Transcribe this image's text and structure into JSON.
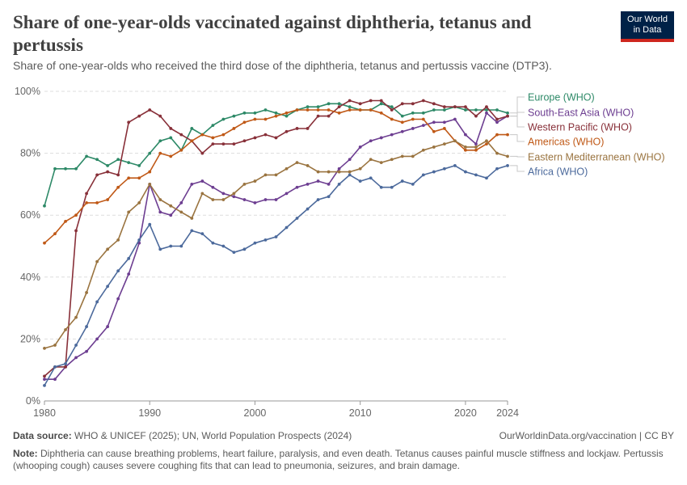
{
  "header": {
    "title": "Share of one-year-olds vaccinated against diphtheria, tetanus and pertussis",
    "subtitle": "Share of one-year-olds who received the third dose of the diphtheria, tetanus and pertussis vaccine (DTP3).",
    "logo_line1": "Our World",
    "logo_line2": "in Data"
  },
  "footer": {
    "source_label": "Data source:",
    "source_text": "WHO & UNICEF (2025); UN, World Population Prospects (2024)",
    "credit": "OurWorldinData.org/vaccination | CC BY",
    "note_label": "Note:",
    "note_text": "Diphtheria can cause breathing problems, heart failure, paralysis, and even death. Tetanus causes painful muscle stiffness and lockjaw. Pertussis (whooping cough) causes severe coughing fits that can lead to pneumonia, seizures, and brain damage."
  },
  "chart_data": {
    "type": "line",
    "x": [
      1980,
      1981,
      1982,
      1983,
      1984,
      1985,
      1986,
      1987,
      1988,
      1989,
      1990,
      1991,
      1992,
      1993,
      1994,
      1995,
      1996,
      1997,
      1998,
      1999,
      2000,
      2001,
      2002,
      2003,
      2004,
      2005,
      2006,
      2007,
      2008,
      2009,
      2010,
      2011,
      2012,
      2013,
      2014,
      2015,
      2016,
      2017,
      2018,
      2019,
      2020,
      2021,
      2022,
      2023,
      2024
    ],
    "xticks": [
      1980,
      1990,
      2000,
      2010,
      2020,
      2024
    ],
    "ylim": [
      0,
      100
    ],
    "yticks": [
      0,
      20,
      40,
      60,
      80,
      100
    ],
    "ytick_suffix": "%",
    "grid": "horizontal-dashed",
    "legend": "right, labels at line ends",
    "series": [
      {
        "name": "Europe (WHO)",
        "color": "#2d8967",
        "values": [
          63,
          75,
          75,
          75,
          79,
          78,
          76,
          78,
          77,
          76,
          80,
          84,
          85,
          81,
          88,
          86,
          89,
          91,
          92,
          93,
          93,
          94,
          93,
          92,
          94,
          95,
          95,
          96,
          96,
          95,
          94,
          94,
          96,
          95,
          92,
          93,
          93,
          94,
          94,
          95,
          94,
          94,
          94,
          94,
          93
        ]
      },
      {
        "name": "South-East Asia (WHO)",
        "color": "#6d3e91",
        "values": [
          7,
          7,
          11,
          14,
          16,
          20,
          24,
          33,
          41,
          51,
          70,
          61,
          60,
          64,
          70,
          71,
          69,
          67,
          66,
          65,
          64,
          65,
          65,
          67,
          69,
          70,
          71,
          70,
          75,
          78,
          82,
          84,
          85,
          86,
          87,
          88,
          89,
          90,
          90,
          91,
          86,
          83,
          93,
          90,
          92
        ]
      },
      {
        "name": "Western Pacific (WHO)",
        "color": "#883039",
        "values": [
          8,
          11,
          11,
          55,
          67,
          73,
          74,
          73,
          90,
          92,
          94,
          92,
          88,
          86,
          84,
          80,
          83,
          83,
          83,
          84,
          85,
          86,
          85,
          87,
          88,
          88,
          92,
          92,
          95,
          97,
          96,
          97,
          97,
          94,
          96,
          96,
          97,
          96,
          95,
          95,
          95,
          92,
          95,
          91,
          92
        ]
      },
      {
        "name": "Americas (WHO)",
        "color": "#c05917",
        "values": [
          51,
          54,
          58,
          60,
          64,
          64,
          65,
          69,
          72,
          72,
          74,
          80,
          79,
          81,
          84,
          86,
          85,
          86,
          88,
          90,
          91,
          91,
          92,
          93,
          94,
          94,
          94,
          94,
          93,
          94,
          94,
          94,
          93,
          91,
          90,
          91,
          91,
          87,
          88,
          84,
          81,
          81,
          83,
          86,
          86
        ]
      },
      {
        "name": "Eastern Mediterranean (WHO)",
        "color": "#9a7440",
        "values": [
          17,
          18,
          23,
          27,
          35,
          45,
          49,
          52,
          61,
          64,
          70,
          65,
          63,
          61,
          59,
          67,
          65,
          65,
          67,
          70,
          71,
          73,
          73,
          75,
          77,
          76,
          74,
          74,
          74,
          74,
          75,
          78,
          77,
          78,
          79,
          79,
          81,
          82,
          83,
          84,
          82,
          82,
          84,
          80,
          79
        ]
      },
      {
        "name": "Africa (WHO)",
        "color": "#4c6a9c",
        "values": [
          5,
          11,
          12,
          18,
          24,
          32,
          37,
          42,
          46,
          52,
          57,
          49,
          50,
          50,
          55,
          54,
          51,
          50,
          48,
          49,
          51,
          52,
          53,
          56,
          59,
          62,
          65,
          66,
          70,
          73,
          71,
          72,
          69,
          69,
          71,
          70,
          73,
          74,
          75,
          76,
          74,
          73,
          72,
          75,
          76
        ]
      }
    ]
  }
}
